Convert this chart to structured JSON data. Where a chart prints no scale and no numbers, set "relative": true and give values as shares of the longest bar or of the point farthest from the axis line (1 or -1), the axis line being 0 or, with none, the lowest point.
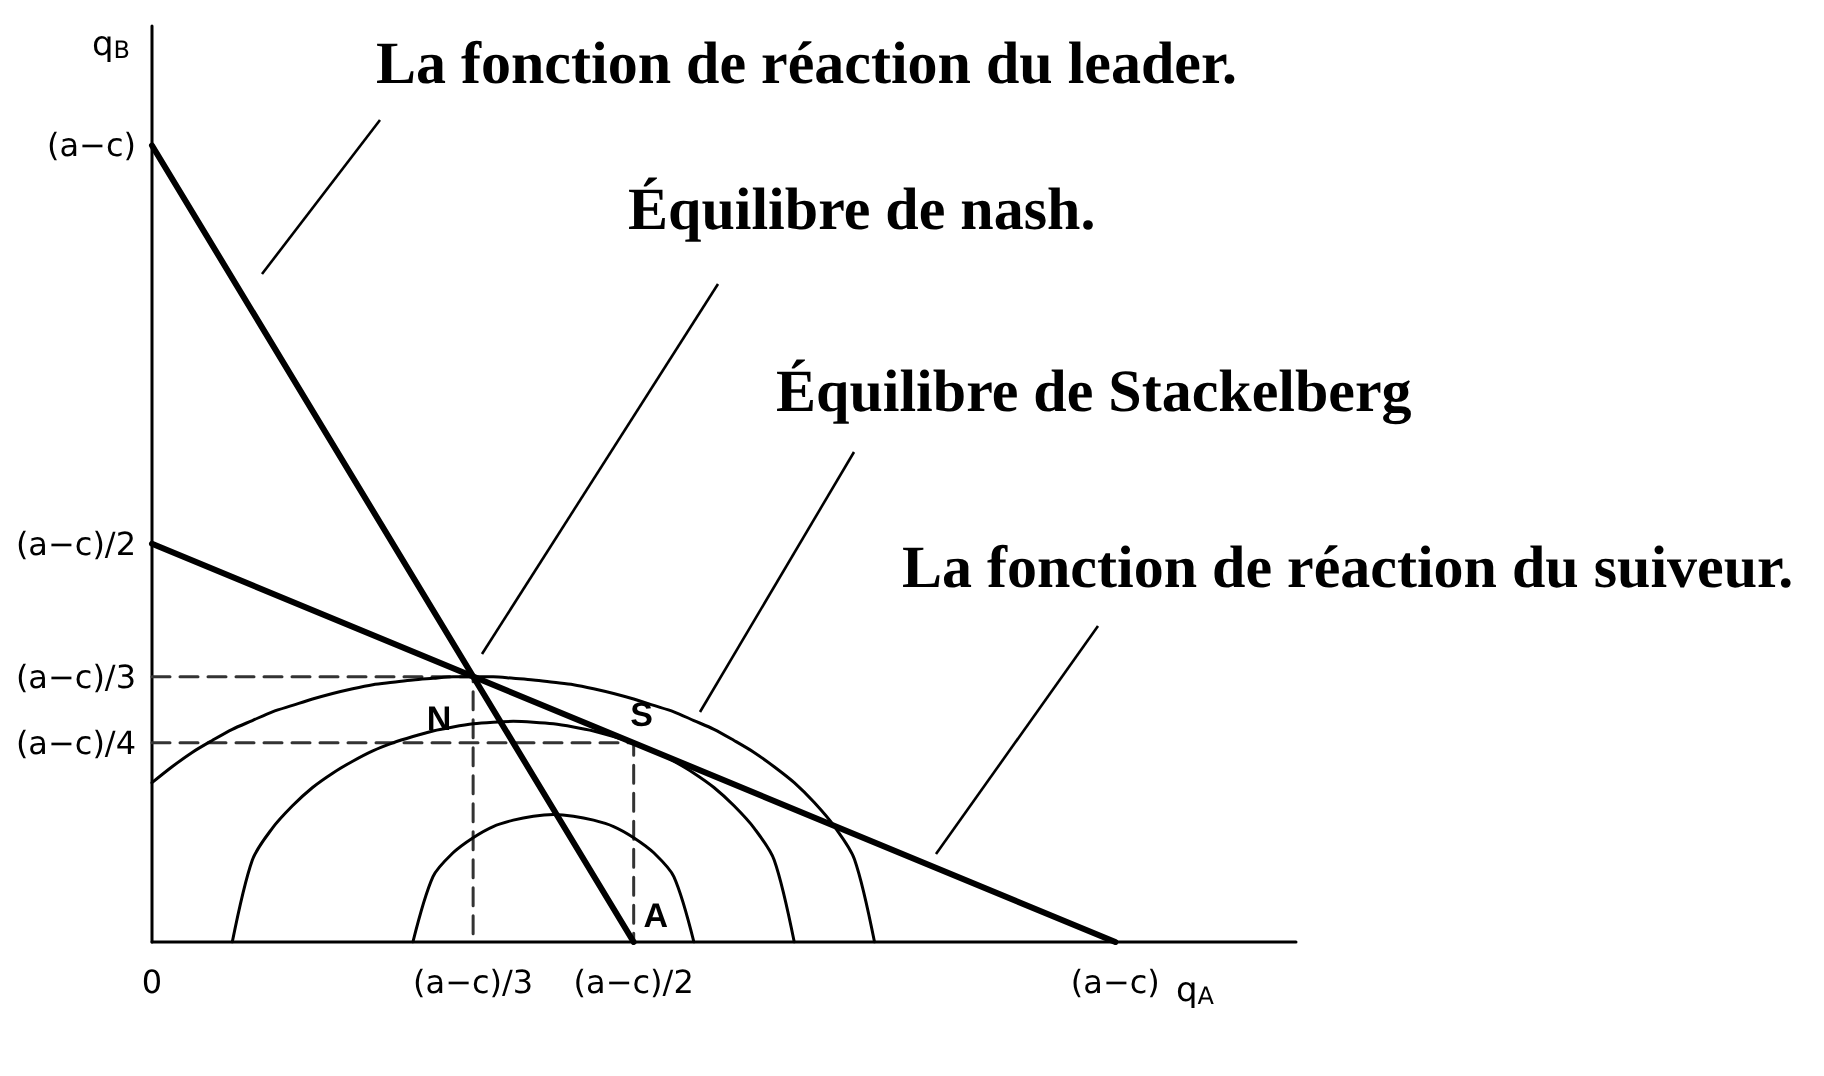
{
  "chart_data": {
    "type": "line",
    "relative": true,
    "xlabel": "q$_{A}$",
    "ylabel": "q$_{B}$",
    "marker": "none",
    "categories": [
      "0",
      null,
      null,
      null,
      null,
      null,
      null,
      null,
      null,
      null,
      null,
      null,
      null,
      null,
      null,
      null,
      "(a−c)/3",
      null,
      null,
      null,
      null,
      null,
      null,
      null,
      "(a−c)/2",
      null,
      null,
      null,
      null,
      null,
      null,
      null,
      null,
      null,
      null,
      null,
      null,
      null,
      null,
      null,
      null,
      null,
      null,
      null,
      null,
      null,
      null,
      null,
      "(a−c)",
      null,
      null,
      null,
      null,
      null,
      null,
      null,
      null,
      null
    ],
    "series": [
      {
        "color": "#000000",
        "x": [
          "0",
          "(a−c)/2"
        ],
        "values": [
          1,
          0
        ]
      },
      {
        "color": "#000000",
        "x": [
          "0",
          "(a−c)"
        ],
        "values": [
          0.5,
          0
        ]
      },
      {
        "color": "#000000",
        "values": [
          0.2,
          0.22,
          0.238,
          0.253,
          0.267,
          0.278,
          0.289,
          0.297,
          0.305,
          0.312,
          0.318,
          0.323,
          0.326,
          0.329,
          0.331,
          0.333,
          0.333,
          0.333,
          0.331,
          0.329,
          0.326,
          0.323,
          0.318,
          0.312,
          0.305,
          0.297,
          0.289,
          0.278,
          0.267,
          0.253,
          0.238,
          0.22,
          0.2,
          0.175,
          0.145,
          0.104,
          0,
          null,
          null,
          null,
          null,
          null,
          null,
          null,
          null,
          null,
          null,
          null,
          null,
          null,
          null,
          null,
          null,
          null,
          null,
          null,
          null,
          null
        ]
      },
      {
        "color": "#000000",
        "values": [
          null,
          null,
          null,
          null,
          0,
          0.103,
          0.143,
          0.171,
          0.194,
          0.212,
          0.227,
          0.24,
          0.25,
          0.258,
          0.265,
          0.27,
          0.274,
          0.276,
          0.277,
          0.276,
          0.274,
          0.27,
          0.265,
          0.258,
          0.25,
          0.24,
          0.227,
          0.212,
          0.194,
          0.171,
          0.143,
          0.103,
          0,
          null,
          null,
          null,
          null,
          null,
          null,
          null,
          null,
          null,
          null,
          null,
          null,
          null,
          null,
          null,
          null,
          null,
          null,
          null,
          null,
          null,
          null,
          null,
          null,
          null
        ]
      },
      {
        "color": "#000000",
        "values": [
          null,
          null,
          null,
          null,
          null,
          null,
          null,
          null,
          null,
          null,
          null,
          null,
          null,
          0,
          0.082,
          0.112,
          0.131,
          0.145,
          0.153,
          0.158,
          0.16,
          0.158,
          0.153,
          0.145,
          0.131,
          0.112,
          0.082,
          0,
          null,
          null,
          null,
          null,
          null,
          null,
          null,
          null,
          null,
          null,
          null,
          null,
          null,
          null,
          null,
          null,
          null,
          null,
          null,
          null,
          null,
          null,
          null,
          null,
          null,
          null,
          null,
          null,
          null,
          null
        ]
      },
      {
        "color": "#333333",
        "line_style": "dashed",
        "x": [
          "0",
          "(a−c)/3",
          "(a−c)/3"
        ],
        "values": [
          0.333,
          0.333,
          0
        ]
      },
      {
        "color": "#333333",
        "line_style": "dashed",
        "x": [
          "0",
          "(a−c)/2",
          "(a−c)/2"
        ],
        "values": [
          0.25,
          0.25,
          0
        ]
      }
    ],
    "annotations": [
      "La fonction de réaction du leader.",
      "Équilibre de nash.",
      "Équilibre de Stackelberg",
      "La fonction de réaction du suiveur.",
      {
        "text": "N",
        "x": "(a−c)/3",
        "y": 0.333
      },
      {
        "text": "S",
        "x": "(a−c)/2",
        "y": 0.25
      },
      {
        "text": "A",
        "x": "(a−c)/2",
        "y": 0
      },
      {
        "text": "(a−c)",
        "x": "0",
        "y": 1
      },
      {
        "text": "(a−c)/2",
        "x": "0",
        "y": 0.5
      },
      {
        "text": "(a−c)/3",
        "x": "0",
        "y": 0.333
      },
      {
        "text": "(a−c)/4",
        "x": "0",
        "y": 0.25
      }
    ]
  }
}
